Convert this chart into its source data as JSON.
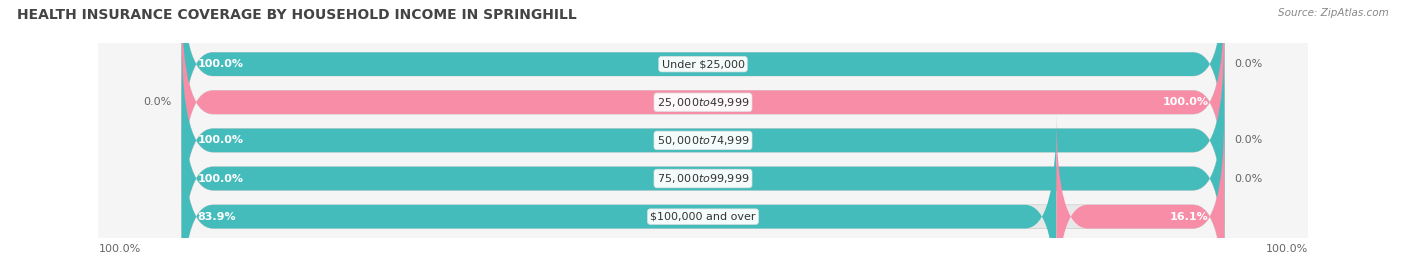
{
  "title": "HEALTH INSURANCE COVERAGE BY HOUSEHOLD INCOME IN SPRINGHILL",
  "source": "Source: ZipAtlas.com",
  "categories": [
    "Under $25,000",
    "$25,000 to $49,999",
    "$50,000 to $74,999",
    "$75,000 to $99,999",
    "$100,000 and over"
  ],
  "with_coverage": [
    100.0,
    0.0,
    100.0,
    100.0,
    83.9
  ],
  "without_coverage": [
    0.0,
    100.0,
    0.0,
    0.0,
    16.1
  ],
  "coverage_color": "#45BCBC",
  "no_coverage_color": "#F78DA7",
  "bar_bg_color": "#E8E8E8",
  "title_fontsize": 10,
  "label_fontsize": 8,
  "category_fontsize": 8,
  "legend_fontsize": 8.5,
  "source_fontsize": 7.5,
  "background_color": "#FFFFFF",
  "axis_bg_color": "#F5F5F5"
}
